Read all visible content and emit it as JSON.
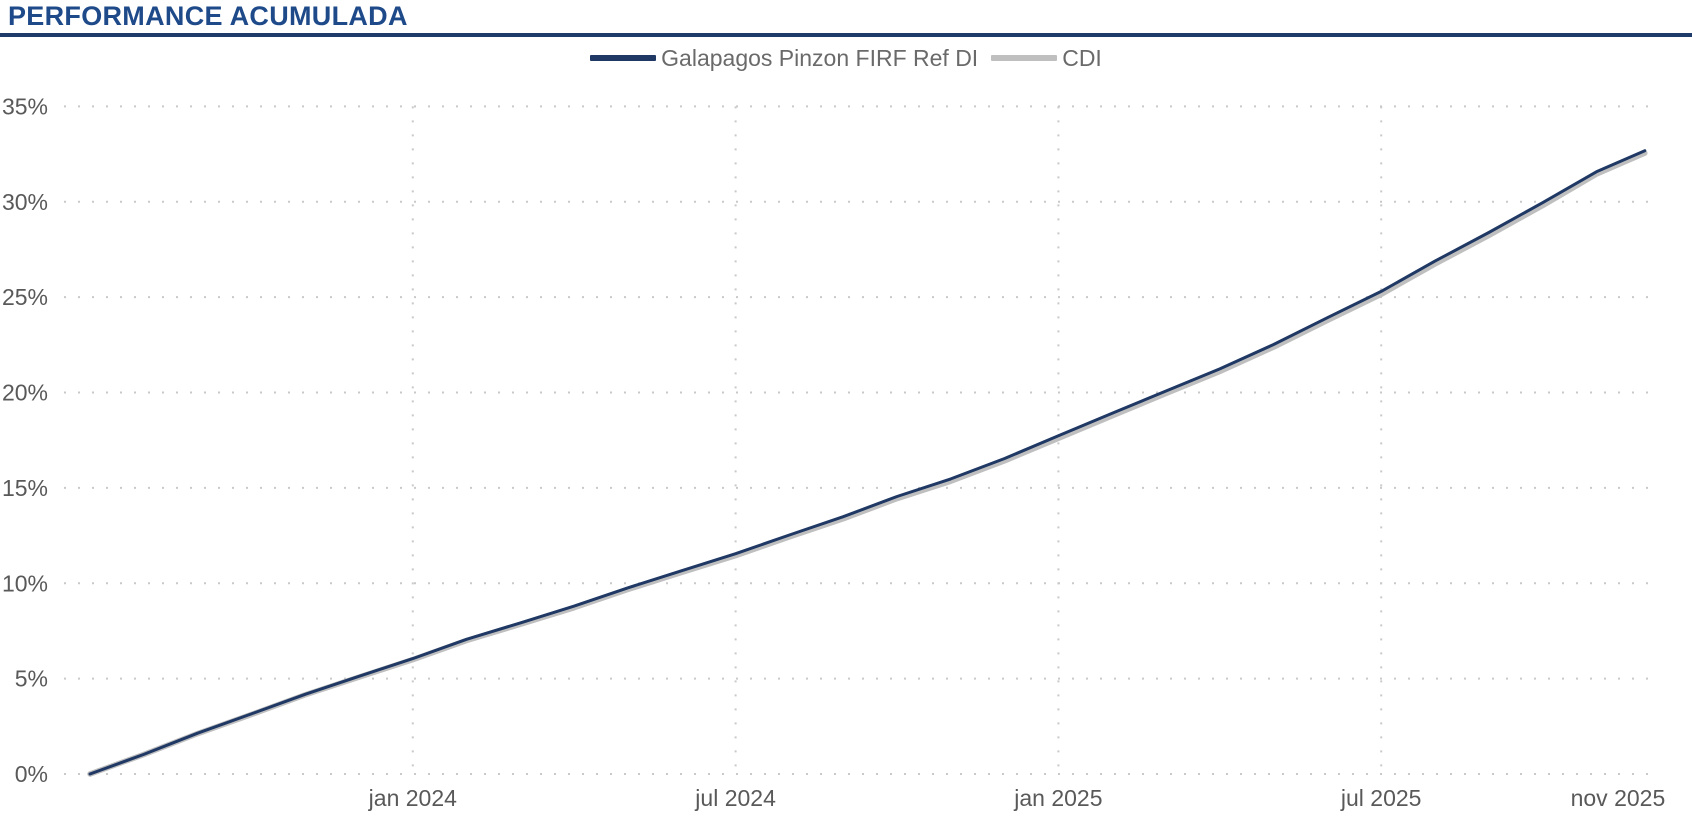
{
  "header": {
    "title": "PERFORMANCE ACUMULADA"
  },
  "colors": {
    "title_navy": "#1E4A8A",
    "rule_navy": "#1F3B69",
    "fund_line": "#1F3864",
    "cdi_line": "#BFBFBF",
    "axis_text": "#595959",
    "gridline": "#C9C9C9"
  },
  "chart_data": {
    "type": "line",
    "title": "PERFORMANCE ACUMULADA",
    "xlabel": "",
    "ylabel": "",
    "ylim": [
      0,
      35
    ],
    "grid": "dotted",
    "legend_position": "top-center",
    "x_unit": "months since jul 2023",
    "x_ticks": [
      {
        "label": "jan 2024",
        "offset": 6,
        "gridline": true
      },
      {
        "label": "jul 2024",
        "offset": 12,
        "gridline": true
      },
      {
        "label": "jan 2025",
        "offset": 18,
        "gridline": true
      },
      {
        "label": "jul 2025",
        "offset": 24,
        "gridline": true
      },
      {
        "label": "nov 2025",
        "offset": 28.4,
        "gridline": false
      }
    ],
    "y_ticks": [
      {
        "label": "0%",
        "value": 0
      },
      {
        "label": "5%",
        "value": 5
      },
      {
        "label": "10%",
        "value": 10
      },
      {
        "label": "15%",
        "value": 15
      },
      {
        "label": "20%",
        "value": 20
      },
      {
        "label": "25%",
        "value": 25
      },
      {
        "label": "30%",
        "value": 30
      },
      {
        "label": "35%",
        "value": 35
      }
    ],
    "series": [
      {
        "name": "Galapagos Pinzon FIRF Ref DI",
        "color": "#1F3864",
        "points": [
          [
            0,
            0
          ],
          [
            1,
            1.03
          ],
          [
            2,
            2.14
          ],
          [
            3,
            3.15
          ],
          [
            4,
            4.18
          ],
          [
            5,
            5.12
          ],
          [
            6,
            6.05
          ],
          [
            7,
            7.06
          ],
          [
            8,
            7.92
          ],
          [
            9,
            8.8
          ],
          [
            10,
            9.76
          ],
          [
            11,
            10.66
          ],
          [
            12,
            11.55
          ],
          [
            13,
            12.53
          ],
          [
            14,
            13.49
          ],
          [
            15,
            14.55
          ],
          [
            16,
            15.47
          ],
          [
            17,
            16.54
          ],
          [
            18,
            17.73
          ],
          [
            19,
            18.91
          ],
          [
            20,
            20.08
          ],
          [
            21,
            21.24
          ],
          [
            22,
            22.52
          ],
          [
            23,
            23.92
          ],
          [
            24,
            25.3
          ],
          [
            25,
            26.89
          ],
          [
            26,
            28.39
          ],
          [
            27,
            29.95
          ],
          [
            28,
            31.57
          ],
          [
            28.9,
            32.68
          ]
        ]
      },
      {
        "name": "CDI",
        "color": "#BFBFBF",
        "points": [
          [
            0,
            0
          ],
          [
            1,
            1.02
          ],
          [
            2,
            2.12
          ],
          [
            3,
            3.12
          ],
          [
            4,
            4.15
          ],
          [
            5,
            5.08
          ],
          [
            6,
            6.0
          ],
          [
            7,
            7.0
          ],
          [
            8,
            7.85
          ],
          [
            9,
            8.72
          ],
          [
            10,
            9.68
          ],
          [
            11,
            10.57
          ],
          [
            12,
            11.45
          ],
          [
            13,
            12.43
          ],
          [
            14,
            13.38
          ],
          [
            15,
            14.44
          ],
          [
            16,
            15.35
          ],
          [
            17,
            16.42
          ],
          [
            18,
            17.6
          ],
          [
            19,
            18.78
          ],
          [
            20,
            19.95
          ],
          [
            21,
            21.1
          ],
          [
            22,
            22.38
          ],
          [
            23,
            23.78
          ],
          [
            24,
            25.15
          ],
          [
            25,
            26.74
          ],
          [
            26,
            28.24
          ],
          [
            27,
            29.8
          ],
          [
            28,
            31.45
          ],
          [
            28.9,
            32.55
          ]
        ]
      }
    ]
  }
}
